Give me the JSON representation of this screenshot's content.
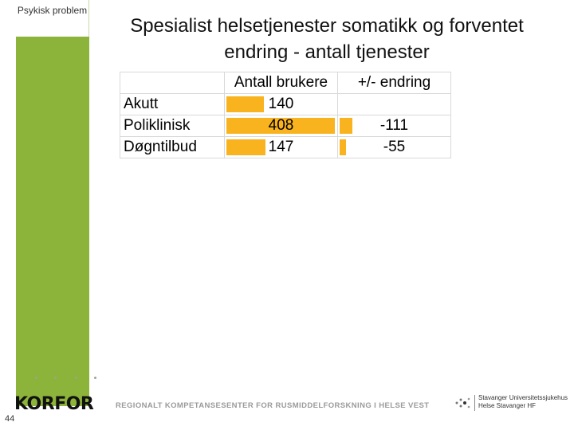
{
  "sidebar": {
    "label": "Psykisk problem"
  },
  "slide": {
    "title": "Spesialist helsetjenester somatikk og forventet endring - antall tjenester",
    "page_number": "44"
  },
  "table": {
    "headers": [
      "",
      "Antall brukere",
      "+/- endring"
    ],
    "rows": [
      {
        "label": "Akutt",
        "users": "140",
        "users_value": 140,
        "change": "",
        "change_value": 0
      },
      {
        "label": "Poliklinisk",
        "users": "408",
        "users_value": 408,
        "change": "-111",
        "change_value": -111
      },
      {
        "label": "Døgntilbud",
        "users": "147",
        "users_value": 147,
        "change": "-55",
        "change_value": -55
      }
    ],
    "bar_color": "#f9b31f"
  },
  "footer": {
    "logo": "KORFOR",
    "tagline": "REGIONALT KOMPETANSESENTER FOR RUSMIDDELFORSKNING I HELSE VEST",
    "hospital_line1": "Stavanger Universitetssjukehus",
    "hospital_line2": "Helse Stavanger HF"
  }
}
